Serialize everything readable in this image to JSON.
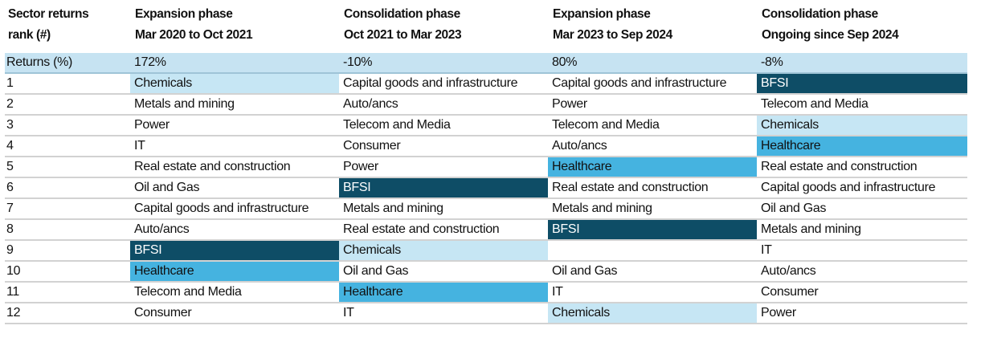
{
  "header": {
    "rank_label_line1": "Sector returns",
    "rank_label_line2": "rank (#)",
    "phases": [
      {
        "name": "Expansion phase",
        "period": "Mar 2020 to Oct 2021"
      },
      {
        "name": "Consolidation phase",
        "period": "Oct 2021 to Mar 2023"
      },
      {
        "name": "Expansion phase",
        "period": "Mar 2023 to Sep 2024"
      },
      {
        "name": "Consolidation phase",
        "period": "Ongoing since Sep 2024"
      }
    ]
  },
  "returns": {
    "label": "Returns (%)",
    "values": [
      "172%",
      "-10%",
      "80%",
      "-8%"
    ]
  },
  "highlight_colors": {
    "BFSI": "#0e4d66",
    "Healthcare": "#45b3e0",
    "Chemicals": "#c6e6f4"
  },
  "returns_row_color": "#c6e3f2",
  "rows": [
    {
      "rank": "1",
      "sectors": [
        "Chemicals",
        "Capital goods and infrastructure",
        "Capital goods and infrastructure",
        "BFSI"
      ]
    },
    {
      "rank": "2",
      "sectors": [
        "Metals and mining",
        "Auto/ancs",
        "Power",
        "Telecom and Media"
      ]
    },
    {
      "rank": "3",
      "sectors": [
        "Power",
        "Telecom and Media",
        "Telecom and Media",
        "Chemicals"
      ]
    },
    {
      "rank": "4",
      "sectors": [
        "IT",
        "Consumer",
        "Auto/ancs",
        "Healthcare"
      ]
    },
    {
      "rank": "5",
      "sectors": [
        "Real estate and construction",
        "Power",
        "Healthcare",
        "Real estate and construction"
      ]
    },
    {
      "rank": "6",
      "sectors": [
        "Oil and Gas",
        "BFSI",
        "Real estate and construction",
        "Capital goods and infrastructure"
      ]
    },
    {
      "rank": "7",
      "sectors": [
        "Capital goods and infrastructure",
        "Metals and mining",
        "Metals and mining",
        "Oil and Gas"
      ]
    },
    {
      "rank": "8",
      "sectors": [
        "Auto/ancs",
        "Real estate and construction",
        "BFSI",
        "Metals and mining"
      ]
    },
    {
      "rank": "9",
      "sectors": [
        "BFSI",
        "Chemicals",
        "",
        "IT"
      ]
    },
    {
      "rank": "10",
      "sectors": [
        "Healthcare",
        "Oil and Gas",
        "Oil and Gas",
        "Auto/ancs"
      ]
    },
    {
      "rank": "11",
      "sectors": [
        "Telecom and Media",
        "Healthcare",
        "IT",
        "Consumer"
      ]
    },
    {
      "rank": "12",
      "sectors": [
        "Consumer",
        "IT",
        "Chemicals",
        "Power"
      ]
    }
  ]
}
